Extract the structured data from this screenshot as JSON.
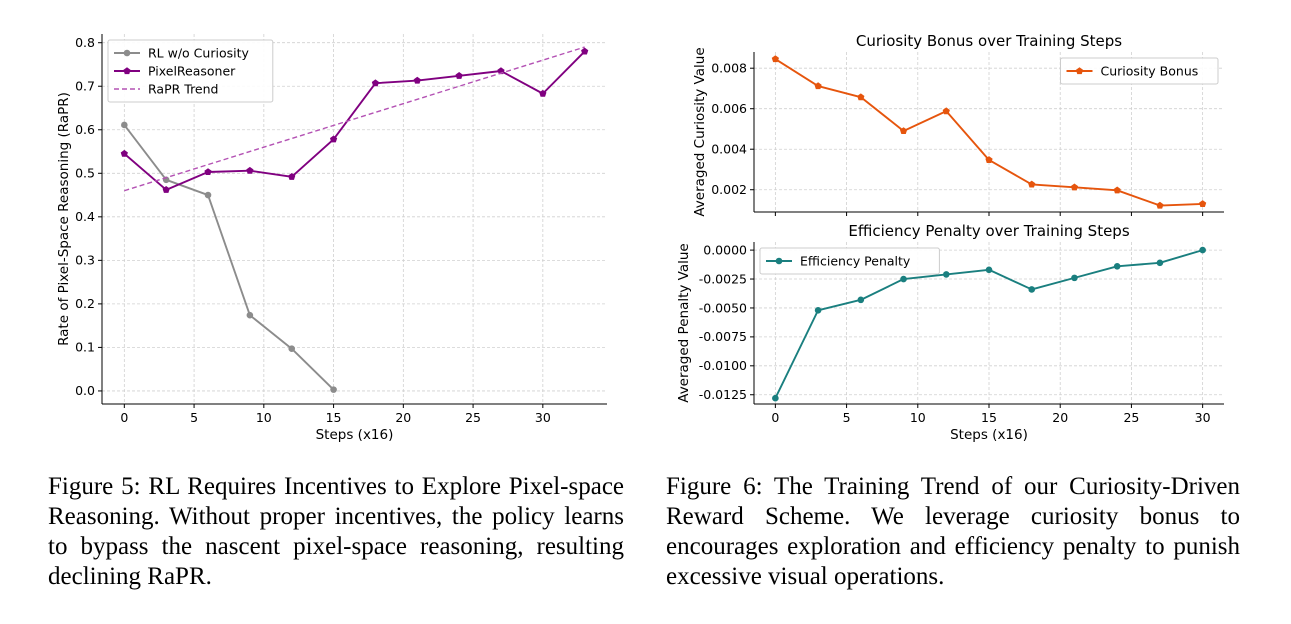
{
  "chart_data": [
    {
      "id": "fig5",
      "type": "line",
      "title": "",
      "xlabel": "Steps (x16)",
      "ylabel": "Rate of Pixel-Space Reasoning (RaPR)",
      "xlim": [
        -1.6,
        34.6
      ],
      "ylim": [
        -0.03,
        0.82
      ],
      "xticks": [
        0,
        5,
        10,
        15,
        20,
        25,
        30
      ],
      "xtick_labels": [
        "0",
        "5",
        "10",
        "15",
        "20",
        "25",
        "30"
      ],
      "yticks": [
        0.0,
        0.1,
        0.2,
        0.3,
        0.4,
        0.5,
        0.6,
        0.7,
        0.8
      ],
      "ytick_labels": [
        "0.0",
        "0.1",
        "0.2",
        "0.3",
        "0.4",
        "0.5",
        "0.6",
        "0.7",
        "0.8"
      ],
      "grid": true,
      "legend": "top-left",
      "series": [
        {
          "name": "RL w/o Curiosity",
          "color": "#8c8c8c",
          "style": "solid",
          "marker": "circle",
          "x": [
            0,
            3,
            6,
            9,
            12,
            15
          ],
          "y": [
            0.611,
            0.485,
            0.45,
            0.174,
            0.097,
            0.003
          ]
        },
        {
          "name": "PixelReasoner",
          "color": "#800080",
          "style": "solid",
          "marker": "pentagon",
          "x": [
            0,
            3,
            6,
            9,
            12,
            15,
            18,
            21,
            24,
            27,
            30,
            33
          ],
          "y": [
            0.545,
            0.462,
            0.503,
            0.506,
            0.492,
            0.578,
            0.707,
            0.713,
            0.724,
            0.735,
            0.683,
            0.78
          ]
        },
        {
          "name": "RaPR Trend",
          "color": "#b452b4",
          "style": "dashed",
          "marker": "none",
          "x": [
            0,
            33
          ],
          "y": [
            0.46,
            0.79
          ]
        }
      ]
    },
    {
      "id": "fig6a",
      "type": "line",
      "title": "Curiosity Bonus over Training Steps",
      "xlabel": "",
      "ylabel": "Averaged Curiosity Value",
      "xlim": [
        -1.5,
        31.5
      ],
      "ylim": [
        0.0009,
        0.0088
      ],
      "xticks": [
        0,
        5,
        10,
        15,
        20,
        25,
        30
      ],
      "xtick_labels": [],
      "yticks": [
        0.002,
        0.004,
        0.006,
        0.008
      ],
      "ytick_labels": [
        "0.002",
        "0.004",
        "0.006",
        "0.008"
      ],
      "grid": true,
      "legend": "top-right",
      "series": [
        {
          "name": "Curiosity Bonus",
          "color": "#e6550d",
          "style": "solid",
          "marker": "pentagon",
          "x": [
            0,
            3,
            6,
            9,
            12,
            15,
            18,
            21,
            24,
            27,
            30
          ],
          "y": [
            0.00845,
            0.00712,
            0.00657,
            0.0049,
            0.00588,
            0.00347,
            0.00226,
            0.00212,
            0.00197,
            0.00122,
            0.0013
          ]
        }
      ]
    },
    {
      "id": "fig6b",
      "type": "line",
      "title": "Efficiency Penalty over Training Steps",
      "xlabel": "Steps (x16)",
      "ylabel": "Averaged Penalty Value",
      "xlim": [
        -1.5,
        31.5
      ],
      "ylim": [
        -0.0133,
        0.0007
      ],
      "xticks": [
        0,
        5,
        10,
        15,
        20,
        25,
        30
      ],
      "xtick_labels": [
        "0",
        "5",
        "10",
        "15",
        "20",
        "25",
        "30"
      ],
      "yticks": [
        -0.0125,
        -0.01,
        -0.0075,
        -0.005,
        -0.0025,
        0.0
      ],
      "ytick_labels": [
        "-0.0125",
        "-0.0100",
        "-0.0075",
        "-0.0050",
        "-0.0025",
        "0.0000"
      ],
      "grid": true,
      "legend": "top-left",
      "series": [
        {
          "name": "Efficiency Penalty",
          "color": "#1a7f7f",
          "style": "solid",
          "marker": "circle",
          "x": [
            0,
            3,
            6,
            9,
            12,
            15,
            18,
            21,
            24,
            27,
            30
          ],
          "y": [
            -0.0128,
            -0.0052,
            -0.0043,
            -0.0025,
            -0.0021,
            -0.0017,
            -0.0034,
            -0.0024,
            -0.0014,
            -0.0011,
            0.0
          ]
        }
      ]
    }
  ],
  "captions": {
    "fig5": {
      "label": "Figure 5:",
      "text": "RL Requires Incentives to Explore Pixel-space Reasoning. Without proper incentives, the policy learns to bypass the nascent pixel-space reasoning, resulting declining RaPR."
    },
    "fig6": {
      "label": "Figure 6:",
      "text": "The Training Trend of our Curiosity-Driven Reward Scheme. We leverage curiosity bonus to encourages exploration and efficiency penalty to punish excessive visual operations."
    }
  }
}
